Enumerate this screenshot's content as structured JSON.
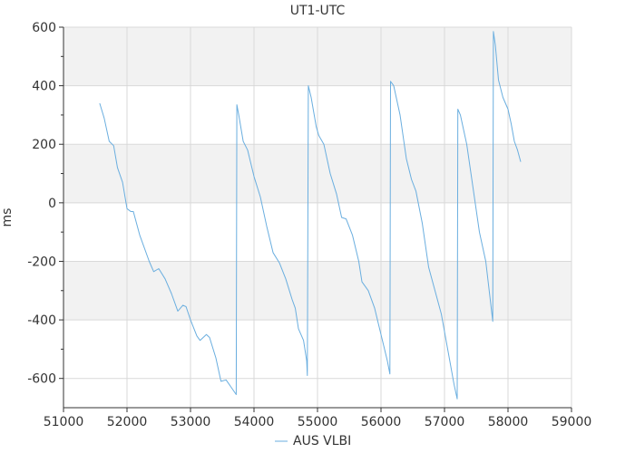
{
  "chart_data": {
    "type": "line",
    "title": "UT1-UTC",
    "xlabel": "",
    "ylabel": "ms",
    "xlim": [
      51000,
      59000
    ],
    "ylim": [
      -700,
      600
    ],
    "x_ticks": [
      51000,
      52000,
      53000,
      54000,
      55000,
      56000,
      57000,
      58000,
      59000
    ],
    "y_ticks": [
      -600,
      -400,
      -200,
      0,
      200,
      400,
      600
    ],
    "grid": true,
    "alternating_bands": true,
    "legend_position": "bottom-center",
    "colors": {
      "line": "#6aaedf",
      "band": "#f2f2f2",
      "grid": "#d9d9d9",
      "axis": "#333333"
    },
    "series": [
      {
        "name": "AUS VLBI",
        "points": [
          [
            51570,
            340
          ],
          [
            51640,
            290
          ],
          [
            51720,
            210
          ],
          [
            51790,
            195
          ],
          [
            51850,
            120
          ],
          [
            51930,
            70
          ],
          [
            52000,
            -20
          ],
          [
            52060,
            -30
          ],
          [
            52100,
            -30
          ],
          [
            52200,
            -110
          ],
          [
            52350,
            -200
          ],
          [
            52420,
            -235
          ],
          [
            52500,
            -225
          ],
          [
            52600,
            -260
          ],
          [
            52700,
            -310
          ],
          [
            52800,
            -370
          ],
          [
            52880,
            -350
          ],
          [
            52930,
            -355
          ],
          [
            53000,
            -400
          ],
          [
            53100,
            -455
          ],
          [
            53150,
            -470
          ],
          [
            53250,
            -450
          ],
          [
            53300,
            -460
          ],
          [
            53400,
            -530
          ],
          [
            53480,
            -610
          ],
          [
            53560,
            -605
          ],
          [
            53640,
            -630
          ],
          [
            53720,
            -655
          ],
          [
            53730,
            335
          ],
          [
            53760,
            300
          ],
          [
            53830,
            210
          ],
          [
            53900,
            180
          ],
          [
            54000,
            90
          ],
          [
            54100,
            20
          ],
          [
            54200,
            -80
          ],
          [
            54300,
            -170
          ],
          [
            54400,
            -205
          ],
          [
            54500,
            -260
          ],
          [
            54600,
            -330
          ],
          [
            54650,
            -360
          ],
          [
            54700,
            -430
          ],
          [
            54780,
            -470
          ],
          [
            54830,
            -540
          ],
          [
            54840,
            -590
          ],
          [
            54855,
            400
          ],
          [
            54900,
            360
          ],
          [
            54980,
            260
          ],
          [
            55020,
            230
          ],
          [
            55100,
            200
          ],
          [
            55200,
            100
          ],
          [
            55300,
            30
          ],
          [
            55380,
            -50
          ],
          [
            55450,
            -55
          ],
          [
            55550,
            -110
          ],
          [
            55650,
            -200
          ],
          [
            55700,
            -270
          ],
          [
            55800,
            -300
          ],
          [
            55900,
            -360
          ],
          [
            56000,
            -450
          ],
          [
            56100,
            -540
          ],
          [
            56140,
            -585
          ],
          [
            56150,
            415
          ],
          [
            56200,
            400
          ],
          [
            56300,
            300
          ],
          [
            56400,
            150
          ],
          [
            56480,
            80
          ],
          [
            56550,
            40
          ],
          [
            56650,
            -70
          ],
          [
            56750,
            -220
          ],
          [
            56850,
            -300
          ],
          [
            56950,
            -380
          ],
          [
            57050,
            -500
          ],
          [
            57150,
            -620
          ],
          [
            57200,
            -670
          ],
          [
            57210,
            320
          ],
          [
            57250,
            300
          ],
          [
            57350,
            200
          ],
          [
            57450,
            50
          ],
          [
            57550,
            -100
          ],
          [
            57650,
            -200
          ],
          [
            57720,
            -330
          ],
          [
            57760,
            -405
          ],
          [
            57770,
            585
          ],
          [
            57800,
            540
          ],
          [
            57850,
            420
          ],
          [
            57920,
            360
          ],
          [
            58000,
            320
          ],
          [
            58050,
            270
          ],
          [
            58100,
            210
          ],
          [
            58150,
            180
          ],
          [
            58200,
            140
          ]
        ]
      }
    ]
  }
}
